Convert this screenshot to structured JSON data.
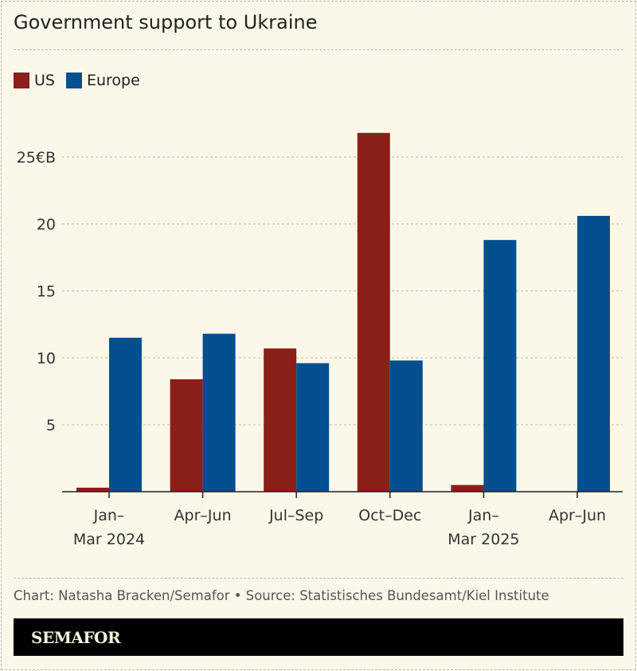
{
  "title": "Government support to Ukraine",
  "credit": "Chart: Natasha Bracken/Semafor • Source: Statistisches Bundesamt/Kiel Institute",
  "brand": "SEMAFOR",
  "chart_data": {
    "type": "bar",
    "categories": [
      [
        "Jan–",
        "Mar 2024"
      ],
      [
        "Apr–Jun"
      ],
      [
        "Jul–Sep"
      ],
      [
        "Oct–Dec"
      ],
      [
        "Jan–",
        "Mar 2025"
      ],
      [
        "Apr–Jun"
      ]
    ],
    "series": [
      {
        "name": "US",
        "color": "#8b1f1a",
        "values": [
          0.3,
          8.4,
          10.7,
          26.8,
          0.5,
          0
        ]
      },
      {
        "name": "Europe",
        "color": "#034f8f",
        "values": [
          11.5,
          11.8,
          9.6,
          9.8,
          18.8,
          20.6
        ]
      }
    ],
    "yticks": [
      5,
      10,
      15,
      20,
      25
    ],
    "ytick_labels": [
      "5",
      "10",
      "15",
      "20",
      "25€B"
    ],
    "ylim": [
      0,
      27
    ],
    "grid": true,
    "legend": "top-left"
  }
}
